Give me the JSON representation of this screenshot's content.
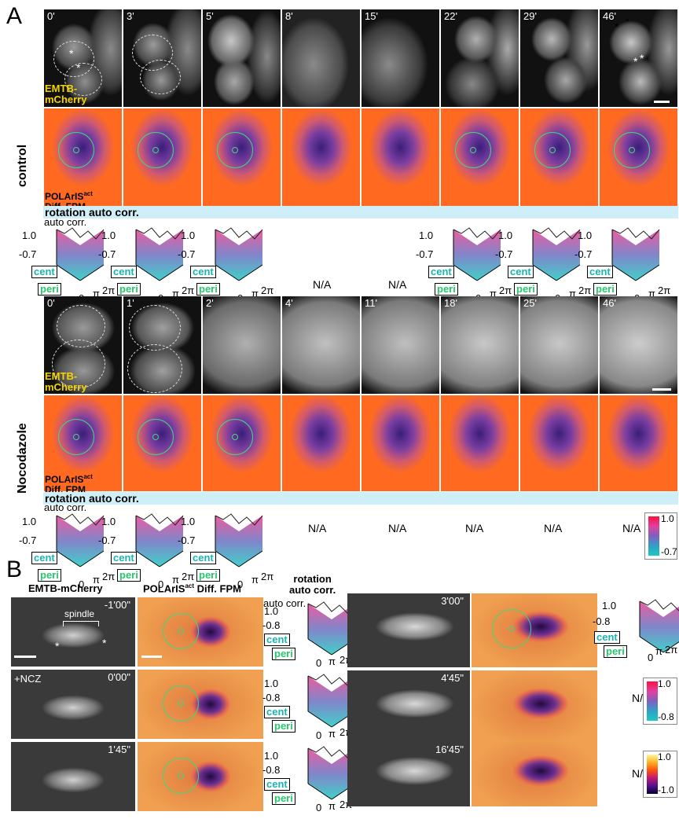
{
  "panel_a": {
    "letter": "A"
  },
  "panel_b": {
    "letter": "B"
  },
  "control": {
    "label": "control",
    "times": [
      "0'",
      "3'",
      "5'",
      "8'",
      "15'",
      "22'",
      "29'",
      "46'"
    ],
    "emtb_label": "EMTB-\nmCherry",
    "fpm_label_1": "POLArIS",
    "fpm_label_sup": "act",
    "fpm_label_2": "Diff. FPM",
    "band": "rotation auto corr.",
    "ylabel": "auto corr.",
    "na": "N/A"
  },
  "nocodazole": {
    "label": "Nocodazole",
    "times": [
      "0'",
      "1'",
      "2'",
      "4'",
      "11'",
      "18'",
      "25'",
      "46'"
    ],
    "emtb_label": "EMTB-\nmCherry",
    "fpm_label_1": "POLArIS",
    "fpm_label_sup": "act",
    "fpm_label_2": "Diff. FPM",
    "band": "rotation auto corr.",
    "ylabel": "auto corr.",
    "na": "N/A"
  },
  "axes": {
    "y_top": "1.0",
    "y_bot_a": "-0.7",
    "y_bot_b": "-0.8",
    "x_0": "0",
    "x_pi": "π",
    "x_2pi": "2π",
    "cent": "cent",
    "peri": "peri"
  },
  "colorbar_a": {
    "max": "1.0",
    "min": "-0.7"
  },
  "panel_b_headers": {
    "emtb": "EMTB-mCherry",
    "fpm_1": "POLArIS",
    "fpm_sup": "act",
    "fpm_2": " Diff. FPM",
    "rot": "rotation\nauto corr.",
    "ylabel": "auto corr.",
    "spindle": "spindle",
    "ncz": "+NCZ",
    "times_left": [
      "-1'00\"",
      "0'00\"",
      "1'45\""
    ],
    "times_right": [
      "3'00\"",
      "4'45\"",
      "16'45\""
    ],
    "na": "N/A"
  },
  "colorbar_b1": {
    "max": "1.0",
    "min": "-0.8"
  },
  "colorbar_b2": {
    "max": "1.0",
    "min": "-1.0"
  }
}
